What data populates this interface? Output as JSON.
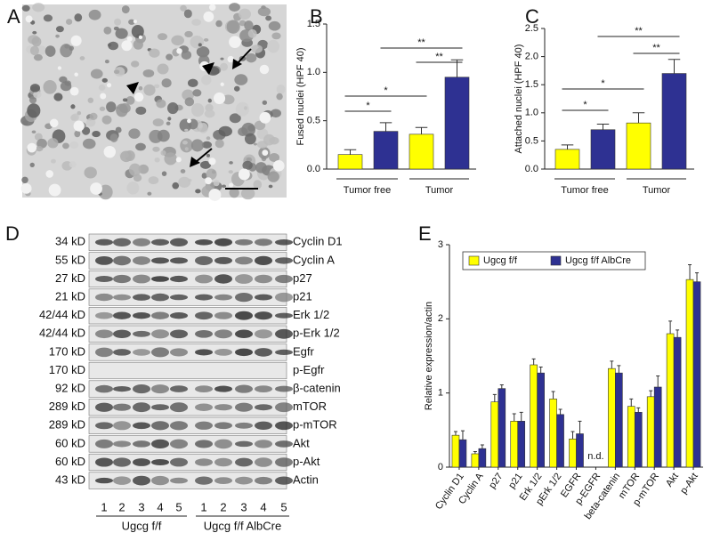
{
  "panel_labels": [
    "A",
    "B",
    "C",
    "D",
    "E"
  ],
  "chart_data": [
    {
      "type": "bar",
      "ylabel": "Fused nuclei (HPF 40)",
      "categories": [
        "Tumor free",
        "Tumor"
      ],
      "series": [
        {
          "color": "#ffff00",
          "values": [
            0.15,
            0.36
          ],
          "errors": [
            0.05,
            0.07
          ]
        },
        {
          "color": "#2e3192",
          "values": [
            0.39,
            0.95
          ],
          "errors": [
            0.09,
            0.18
          ]
        }
      ],
      "ylim": [
        0,
        1.5
      ],
      "yticks": [
        {
          "value": 0,
          "label": "0.0"
        },
        0.5,
        {
          "value": 1,
          "label": "1.0"
        },
        1.5
      ],
      "annotations": [
        "*",
        "*",
        "**",
        "**"
      ]
    },
    {
      "type": "bar",
      "ylabel": "Attached nuclei (HPF 40)",
      "categories": [
        "Tumor free",
        "Tumor"
      ],
      "series": [
        {
          "color": "#ffff00",
          "values": [
            0.35,
            0.82
          ],
          "errors": [
            0.08,
            0.18
          ]
        },
        {
          "color": "#2e3192",
          "values": [
            0.7,
            1.7
          ],
          "errors": [
            0.1,
            0.25
          ]
        }
      ],
      "ylim": [
        0,
        2.5
      ],
      "yticks": [
        {
          "value": 0,
          "label": "0.0"
        },
        0.5,
        {
          "value": 1,
          "label": "1.0"
        },
        1.5,
        {
          "value": 2,
          "label": "2.0"
        },
        2.5
      ],
      "annotations": [
        "*",
        "*",
        "**",
        "**"
      ]
    },
    {
      "type": "bar",
      "ylabel": "Relative expression/actin",
      "categories": [
        "Cyclin D1",
        "Cyclin A",
        "p27",
        "p21",
        "Erk 1/2",
        "pErk 1/2",
        "EGFR",
        "p-EGFR",
        "beta-catenin",
        "mTOR",
        "p-mTOR",
        "Akt",
        "p-Akt"
      ],
      "series": [
        {
          "name": "Ugcg f/f",
          "color": "#ffff00",
          "values": [
            0.43,
            0.18,
            0.88,
            0.62,
            1.38,
            0.92,
            0.38,
            null,
            1.33,
            0.82,
            0.95,
            1.8,
            2.53
          ],
          "errors": [
            0.05,
            0.03,
            0.1,
            0.1,
            0.08,
            0.1,
            0.1,
            null,
            0.1,
            0.1,
            0.08,
            0.17,
            0.2
          ]
        },
        {
          "name": "Ugcg f/f AlbCre",
          "color": "#2e3192",
          "values": [
            0.37,
            0.25,
            1.06,
            0.62,
            1.27,
            0.71,
            0.45,
            null,
            1.27,
            0.74,
            1.08,
            1.75,
            2.5
          ],
          "errors": [
            0.12,
            0.05,
            0.05,
            0.12,
            0.08,
            0.07,
            0.17,
            null,
            0.1,
            0.06,
            0.15,
            0.1,
            0.12
          ]
        }
      ],
      "ylim": [
        0,
        3
      ],
      "yticks": [
        0,
        1,
        2,
        3
      ],
      "legend": "top",
      "annotations": [
        "n.d."
      ]
    }
  ],
  "blot": {
    "rows": [
      {
        "size": "34 kD",
        "protein": "Cyclin D1"
      },
      {
        "size": "55 kD",
        "protein": "Cyclin A"
      },
      {
        "size": "27 kD",
        "protein": "p27"
      },
      {
        "size": "21 kD",
        "protein": "p21"
      },
      {
        "size": "42/44 kD",
        "protein": "Erk 1/2"
      },
      {
        "size": "42/44 kD",
        "protein": "p-Erk 1/2"
      },
      {
        "size": "170 kD",
        "protein": "Egfr"
      },
      {
        "size": "170 kD",
        "protein": "p-Egfr"
      },
      {
        "size": "92 kD",
        "protein": "β-catenin"
      },
      {
        "size": "289 kD",
        "protein": "mTOR"
      },
      {
        "size": "289 kD",
        "protein": "p-mTOR"
      },
      {
        "size": "60 kD",
        "protein": "Akt"
      },
      {
        "size": "60 kD",
        "protein": "p-Akt"
      },
      {
        "size": "43 kD",
        "protein": "Actin"
      }
    ],
    "lanes": [
      "1",
      "2",
      "3",
      "4",
      "5",
      "1",
      "2",
      "3",
      "4",
      "5"
    ],
    "groups": [
      "Ugcg f/f",
      "Ugcg f/f AlbCre"
    ]
  }
}
